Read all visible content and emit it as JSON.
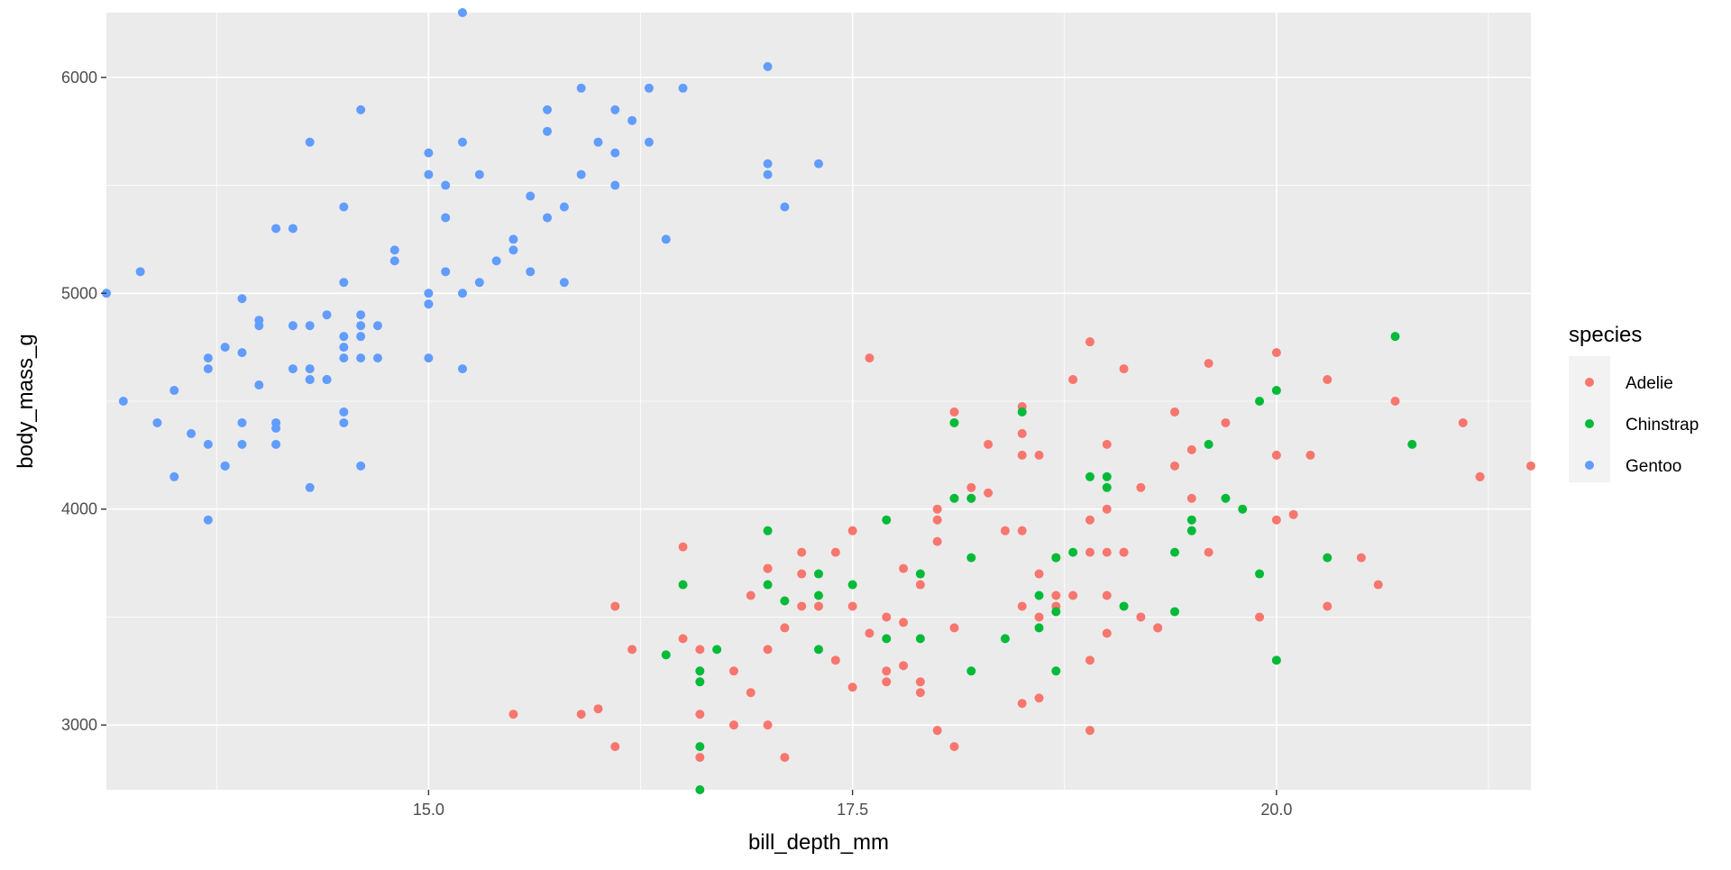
{
  "chart_data": {
    "type": "scatter",
    "title": "",
    "xlabel": "bill_depth_mm",
    "ylabel": "body_mass_g",
    "xlim": [
      13.1,
      21.5
    ],
    "ylim": [
      2700,
      6300
    ],
    "x_ticks": [
      15.0,
      17.5,
      20.0
    ],
    "x_tick_labels": [
      "15.0",
      "17.5",
      "20.0"
    ],
    "y_ticks": [
      3000,
      4000,
      5000,
      6000
    ],
    "y_tick_labels": [
      "3000",
      "4000",
      "5000",
      "6000"
    ],
    "grid": true,
    "legend": {
      "title": "species",
      "position": "right"
    },
    "series": [
      {
        "name": "Adelie",
        "color": "#F8766D",
        "x": [
          17.6,
          18.9,
          20.0,
          19.1,
          18.8,
          19.6,
          20.3,
          20.7,
          21.1,
          21.2,
          21.5,
          19.4,
          19.5,
          18.5,
          18.1,
          18.3,
          18.5,
          18.6,
          19.0,
          19.5,
          19.7,
          20.0,
          20.2,
          21.2,
          18.0,
          18.2,
          18.5,
          19.0,
          19.2,
          19.4,
          20.0,
          20.1,
          16.5,
          17.5,
          17.0,
          17.2,
          17.3,
          17.4,
          17.8,
          18.0,
          18.6,
          18.7,
          18.9,
          19.0,
          19.1,
          19.3,
          19.6,
          19.9,
          20.3,
          20.5,
          20.6,
          16.1,
          16.5,
          16.9,
          17.0,
          17.1,
          17.2,
          17.5,
          17.6,
          17.7,
          17.8,
          17.9,
          18.0,
          18.2,
          18.3,
          18.5,
          18.6,
          18.7,
          18.8,
          18.9,
          19.0,
          19.2,
          19.3,
          16.2,
          16.6,
          16.8,
          17.0,
          17.2,
          17.4,
          17.7,
          17.9,
          18.1,
          18.4,
          18.5,
          18.7,
          18.9,
          19.0,
          19.1,
          15.5,
          15.9,
          16.0,
          16.1,
          16.6,
          16.6,
          16.8,
          16.9,
          17.0,
          17.1,
          17.5,
          17.7,
          17.8,
          17.9,
          18.0,
          18.1,
          18.5,
          18.6,
          18.9
        ],
        "y": [
          4700,
          4775,
          4725,
          4650,
          4600,
          4675,
          4600,
          4500,
          4400,
          4150,
          4200,
          4450,
          4275,
          4475,
          4450,
          4300,
          4250,
          4250,
          4300,
          4050,
          4400,
          4250,
          4250,
          4150,
          4000,
          4050,
          4350,
          4000,
          4100,
          4200,
          3950,
          3975,
          3825,
          3900,
          3725,
          3700,
          3550,
          3800,
          3725,
          3950,
          3700,
          3775,
          3800,
          3800,
          3800,
          3450,
          3800,
          3500,
          3550,
          3775,
          3650,
          3550,
          3400,
          3600,
          3725,
          3450,
          3800,
          3550,
          3425,
          3500,
          3475,
          3650,
          3850,
          4100,
          4075,
          3900,
          3500,
          3550,
          3600,
          3950,
          3600,
          3500,
          3450,
          3350,
          3350,
          3250,
          3350,
          3550,
          3300,
          3200,
          3200,
          3450,
          3900,
          3550,
          3600,
          3300,
          3425,
          3800,
          3050,
          3050,
          3075,
          2900,
          3050,
          2850,
          3000,
          3150,
          3000,
          2850,
          3175,
          3250,
          3275,
          3150,
          2975,
          2900,
          3100,
          3125,
          2975
        ]
      },
      {
        "name": "Chinstrap",
        "color": "#00BA38",
        "x": [
          20.7,
          20.0,
          19.9,
          20.8,
          18.1,
          18.5,
          19.6,
          17.0,
          18.2,
          19.0,
          18.9,
          19.0,
          19.5,
          19.7,
          19.8,
          17.3,
          16.5,
          17.5,
          18.2,
          18.7,
          18.8,
          19.4,
          19.5,
          19.9,
          20.3,
          17.0,
          17.1,
          17.3,
          17.7,
          17.9,
          18.1,
          19.1,
          19.4,
          16.7,
          18.6,
          18.7,
          16.6,
          17.3,
          17.7,
          17.9,
          18.4,
          18.6,
          16.4,
          16.6,
          18.2,
          18.7,
          20.0,
          16.6,
          16.6
        ],
        "y": [
          4800,
          4550,
          4500,
          4300,
          4400,
          4450,
          4300,
          3900,
          4050,
          4150,
          4150,
          4100,
          3950,
          4050,
          4000,
          3700,
          3650,
          3650,
          3775,
          3775,
          3800,
          3800,
          3900,
          3700,
          3775,
          3650,
          3575,
          3600,
          3950,
          3700,
          4050,
          3550,
          3525,
          3350,
          3450,
          3525,
          3250,
          3350,
          3400,
          3400,
          3400,
          3600,
          3325,
          3200,
          3250,
          3250,
          3300,
          2900,
          2700
        ]
      },
      {
        "name": "Gentoo",
        "color": "#619CFF",
        "x": [
          15.2,
          17.0,
          15.0,
          15.3,
          16.4,
          16.3,
          16.5,
          15.9,
          16.1,
          16.2,
          17.0,
          17.3,
          14.6,
          14.3,
          15.0,
          15.2,
          15.7,
          16.0,
          16.1,
          16.3,
          17.0,
          17.1,
          15.1,
          15.7,
          15.6,
          15.9,
          16.1,
          14.5,
          14.1,
          14.2,
          14.8,
          14.8,
          15.1,
          15.5,
          15.8,
          15.4,
          15.3,
          15.5,
          15.7,
          15.6,
          15.8,
          13.1,
          13.3,
          14.5,
          14.0,
          14.2,
          14.3,
          14.4,
          14.5,
          14.6,
          14.6,
          14.7,
          15.0,
          15.0,
          15.0,
          15.1,
          15.2,
          13.2,
          13.4,
          13.5,
          13.7,
          13.7,
          13.9,
          14.0,
          14.1,
          14.3,
          14.4,
          14.5,
          14.6,
          13.6,
          13.7,
          13.8,
          13.9,
          14.1,
          14.2,
          14.3,
          14.4,
          14.5,
          14.5,
          14.6,
          14.7,
          15.0,
          13.8,
          13.9,
          14.0,
          14.1,
          14.3,
          14.5,
          14.6,
          13.5,
          13.7,
          13.8,
          13.9,
          14.3,
          15.2
        ],
        "y": [
          6300,
          6050,
          5650,
          5550,
          5250,
          5950,
          5950,
          5950,
          5850,
          5800,
          5600,
          5600,
          5850,
          5700,
          5550,
          5700,
          5850,
          5700,
          5650,
          5700,
          5550,
          5400,
          5500,
          5750,
          5450,
          5550,
          5500,
          5400,
          5300,
          5300,
          5200,
          5150,
          5350,
          5250,
          5400,
          5150,
          5050,
          5200,
          5350,
          5100,
          5050,
          5000,
          5100,
          5050,
          4850,
          4850,
          4850,
          4900,
          4800,
          4850,
          4900,
          4850,
          5000,
          4950,
          4950,
          5100,
          4650,
          4500,
          4400,
          4550,
          4650,
          4700,
          4725,
          4575,
          4400,
          4600,
          4600,
          4400,
          4200,
          4350,
          4300,
          4200,
          4300,
          4300,
          4650,
          4600,
          4600,
          4750,
          4700,
          4700,
          4700,
          4700,
          4750,
          4975,
          4875,
          4375,
          4100,
          4450,
          4800,
          4150,
          3950,
          4200,
          4400,
          4650,
          5000
        ]
      }
    ]
  }
}
